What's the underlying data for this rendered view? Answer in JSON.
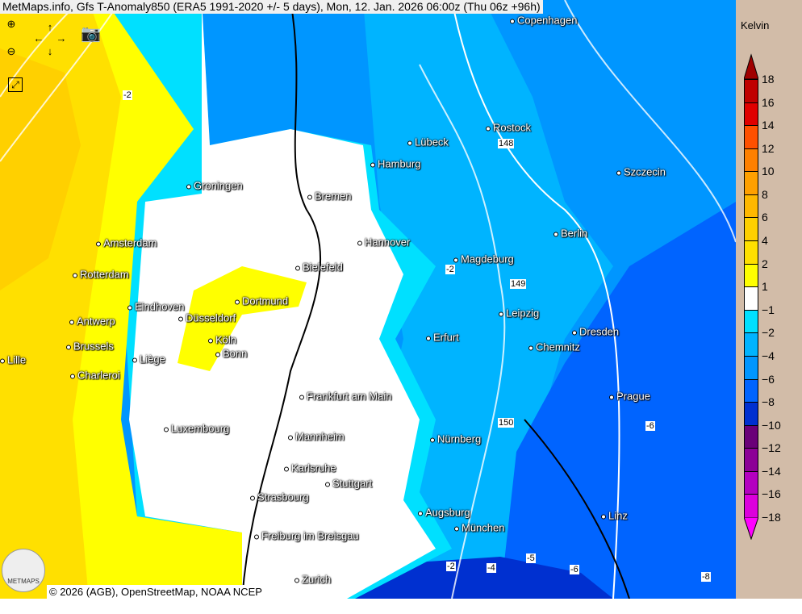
{
  "title": "MetMaps.info, Gfs T-Anomaly850 (ERA5 1991-2020 +/- 5 days), Mon, 12. Jan. 2026 06:00z (Thu 06z +96h)",
  "legend": {
    "unit": "Kelvin",
    "labels": [
      "18",
      "16",
      "14",
      "12",
      "10",
      "8",
      "6",
      "4",
      "2",
      "1",
      "−1",
      "−2",
      "−4",
      "−6",
      "−8",
      "−10",
      "−12",
      "−14",
      "−16",
      "−18"
    ],
    "colors": [
      "#c00000",
      "#e00000",
      "#ff5000",
      "#ff8000",
      "#ffa000",
      "#ffb800",
      "#ffd000",
      "#ffe000",
      "#ffff00",
      "#ffffff",
      "#00e0ff",
      "#00b4ff",
      "#0096ff",
      "#0064ff",
      "#0030d0",
      "#6a0078",
      "#8c0096",
      "#b400c0",
      "#dc00dc"
    ],
    "top_arrow": "#a00000",
    "bottom_arrow": "#ff00ff"
  },
  "cities": [
    "Copenhagen",
    "Rostock",
    "Lübeck",
    "Hamburg",
    "Szczecin",
    "Groningen",
    "Bremen",
    "Amsterdam",
    "Hannover",
    "Berlin",
    "Bielefeld",
    "Magdeburg",
    "Rotterdam",
    "Dortmund",
    "Eindhoven",
    "Düsseldorf",
    "Leipzig",
    "Antwerp",
    "Dresden",
    "Erfurt",
    "Köln",
    "Brussels",
    "Chemnitz",
    "Lille",
    "Liège",
    "Bonn",
    "Charleroi",
    "Prague",
    "Frankfurt am Main",
    "Luxembourg",
    "Mannheim",
    "Nürnberg",
    "Karlsruhe",
    "Stuttgart",
    "Strasbourg",
    "Augsburg",
    "Linz",
    "München",
    "Freiburg im Breisgau",
    "Zurich"
  ],
  "isolines": [
    "-2",
    "148",
    "-2",
    "149",
    "150",
    "-6",
    "-2",
    "-4",
    "-5",
    "-6",
    "-8"
  ],
  "attribution": "© 2026 (AGB), OpenStreetMap, NOAA NCEP",
  "logo": "METMAPS",
  "tools": {
    "zoom_in": "zoom-in-icon",
    "zoom_out": "zoom-out-icon",
    "pan": "pan-arrows-icon",
    "screenshot": "camera-icon",
    "fullscreen": "fullscreen-icon"
  }
}
